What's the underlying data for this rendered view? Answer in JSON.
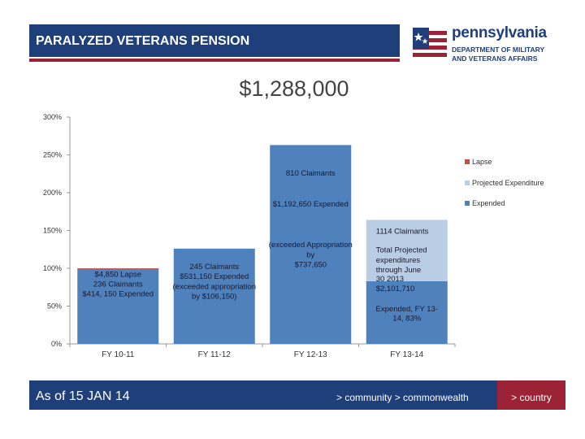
{
  "header": {
    "title": "PARALYZED VETERANS PENSION"
  },
  "logo": {
    "name": "pennsylvania",
    "dept_line1": "DEPARTMENT OF MILITARY",
    "dept_line2": "AND VETERANS AFFAIRS"
  },
  "total_amount": "$1,288,000",
  "footer": {
    "date": "As of 15 JAN 14",
    "tagline": "> community > commonwealth",
    "country": "> country"
  },
  "colors": {
    "navy": "#1e3f7a",
    "red": "#9b2335",
    "expended": "#4f81bd",
    "projected": "#b9cde5",
    "lapse": "#c0504d"
  },
  "chart_data": {
    "type": "bar",
    "stacked": true,
    "categories": [
      "FY 10-11",
      "FY 11-12",
      "FY 12-13",
      "FY 13-14"
    ],
    "series": [
      {
        "name": "Expended",
        "color": "#4f81bd",
        "values": [
          99,
          126,
          263,
          83
        ]
      },
      {
        "name": "Projected Expenditure",
        "color": "#b9cde5",
        "values": [
          0,
          0,
          0,
          81
        ]
      },
      {
        "name": "Lapse",
        "color": "#c0504d",
        "values": [
          1,
          0,
          0,
          0
        ]
      }
    ],
    "legend_order": [
      "Lapse",
      "Projected Expenditure",
      "Expended"
    ],
    "legend_position": "right",
    "ylim": [
      0,
      300
    ],
    "yticks": [
      "0%",
      "50%",
      "100%",
      "150%",
      "200%",
      "250%",
      "300%"
    ],
    "grid": false,
    "annotations": [
      {
        "category": 0,
        "lines": [
          "$4,850 Lapse",
          "236 Claimants",
          "$414, 150 Expended"
        ],
        "y": [
          92,
          79,
          66
        ]
      },
      {
        "category": 1,
        "lines": [
          "245 Claimants",
          "$531,150 Expended",
          "(exceeded appropriation",
          "by $106,150)"
        ],
        "y": [
          102,
          89,
          76,
          63
        ]
      },
      {
        "category": 2,
        "lines": [
          "810 Claimants"
        ],
        "y": [
          226
        ]
      },
      {
        "category": 2,
        "lines": [
          "$1,192,650 Expended"
        ],
        "y": [
          185
        ]
      },
      {
        "category": 2,
        "lines": [
          "(exceeded Appropriation",
          "by",
          "$737,650"
        ],
        "y": [
          131,
          118,
          105
        ]
      },
      {
        "category": 3,
        "lines": [
          "1114 Claimants"
        ],
        "y": [
          149
        ],
        "align": "start"
      },
      {
        "category": 3,
        "lines": [
          "Total Projected",
          "expenditures",
          "through June",
          "30 2013",
          "$2,101,710"
        ],
        "y": [
          124,
          111,
          98,
          86,
          73
        ],
        "align": "start"
      },
      {
        "category": 3,
        "lines": [
          "Expended, FY 13-",
          "14, 83%"
        ],
        "y": [
          46,
          34
        ],
        "align": "center"
      }
    ]
  }
}
